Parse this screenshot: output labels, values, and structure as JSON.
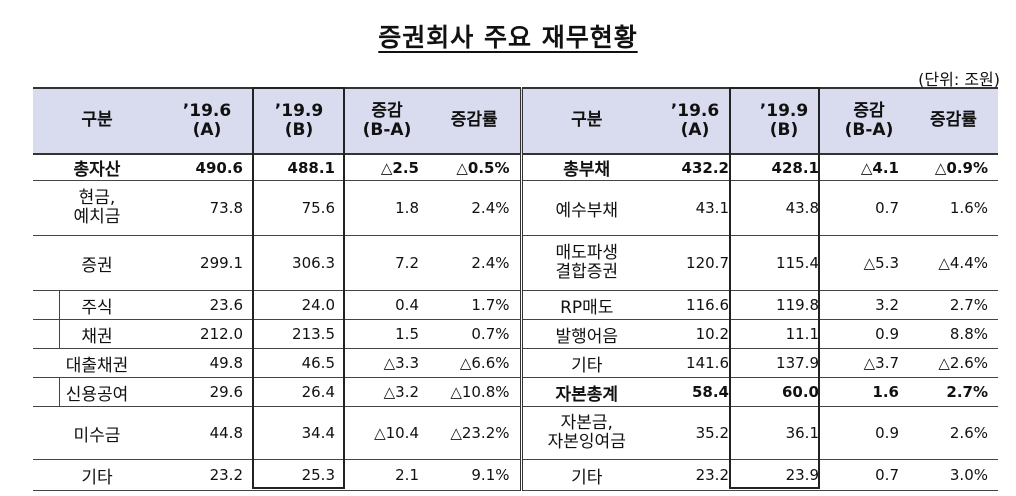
{
  "title": "증권회사 주요 재무현황",
  "unit": "(단위: 조원)",
  "headers": {
    "left": {
      "c1": "구분",
      "c2": "’19.6\n(A)",
      "c3": "’19.9\n(B)",
      "c4": "증감\n(B-A)",
      "c5": "증감률"
    },
    "right": {
      "c1": "구분",
      "c2": "’19.6\n(A)",
      "c3": "’19.9\n(B)",
      "c4": "증감\n(B-A)",
      "c5": "증감률"
    }
  },
  "rows": [
    {
      "l": [
        "총자산",
        "490.6",
        "488.1",
        "△2.5",
        "△0.5%"
      ],
      "r": [
        "총부채",
        "432.2",
        "428.1",
        "△4.1",
        "△0.9%"
      ]
    },
    {
      "l": [
        "현금,\n예치금",
        "73.8",
        "75.6",
        "1.8",
        "2.4%"
      ],
      "r": [
        "예수부채",
        "43.1",
        "43.8",
        "0.7",
        "1.6%"
      ]
    },
    {
      "l": [
        "증권",
        "299.1",
        "306.3",
        "7.2",
        "2.4%"
      ],
      "r": [
        "매도파생\n결합증권",
        "120.7",
        "115.4",
        "△5.3",
        "△4.4%"
      ]
    },
    {
      "l": [
        "주식",
        "23.6",
        "24.0",
        "0.4",
        "1.7%"
      ],
      "r": [
        "RP매도",
        "116.6",
        "119.8",
        "3.2",
        "2.7%"
      ]
    },
    {
      "l": [
        "채권",
        "212.0",
        "213.5",
        "1.5",
        "0.7%"
      ],
      "r": [
        "발행어음",
        "10.2",
        "11.1",
        "0.9",
        "8.8%"
      ]
    },
    {
      "l": [
        "대출채권",
        "49.8",
        "46.5",
        "△3.3",
        "△6.6%"
      ],
      "r": [
        "기타",
        "141.6",
        "137.9",
        "△3.7",
        "△2.6%"
      ]
    },
    {
      "l": [
        "신용공여",
        "29.6",
        "26.4",
        "△3.2",
        "△10.8%"
      ],
      "r": [
        "자본총계",
        "58.4",
        "60.0",
        "1.6",
        "2.7%"
      ]
    },
    {
      "l": [
        "미수금",
        "44.8",
        "34.4",
        "△10.4",
        "△23.2%"
      ],
      "r": [
        "자본금,\n자본잉여금",
        "35.2",
        "36.1",
        "0.9",
        "2.6%"
      ]
    },
    {
      "l": [
        "기타",
        "23.2",
        "25.3",
        "2.1",
        "9.1%"
      ],
      "r": [
        "기타",
        "23.2",
        "23.9",
        "0.7",
        "3.0%"
      ]
    }
  ]
}
